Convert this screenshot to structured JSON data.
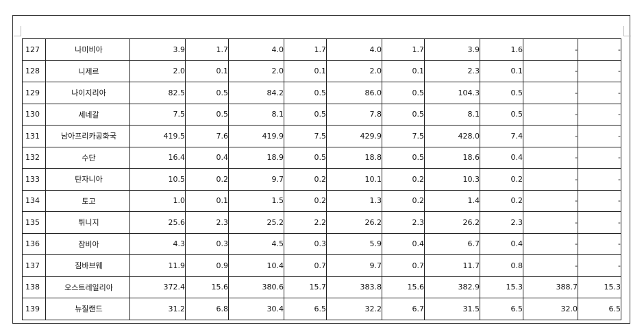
{
  "table": {
    "rows": [
      [
        "127",
        "나미비아",
        "3.9",
        "1.7",
        "4.0",
        "1.7",
        "4.0",
        "1.7",
        "3.9",
        "1.6",
        "-",
        "-"
      ],
      [
        "128",
        "니제르",
        "2.0",
        "0.1",
        "2.0",
        "0.1",
        "2.0",
        "0.1",
        "2.3",
        "0.1",
        "-",
        "-"
      ],
      [
        "129",
        "나이지리아",
        "82.5",
        "0.5",
        "84.2",
        "0.5",
        "86.0",
        "0.5",
        "104.3",
        "0.5",
        "-",
        "-"
      ],
      [
        "130",
        "세네갈",
        "7.5",
        "0.5",
        "8.1",
        "0.5",
        "7.8",
        "0.5",
        "8.1",
        "0.5",
        "-",
        "-"
      ],
      [
        "131",
        "남아프리카공화국",
        "419.5",
        "7.6",
        "419.9",
        "7.5",
        "429.9",
        "7.5",
        "428.0",
        "7.4",
        "-",
        "-"
      ],
      [
        "132",
        "수단",
        "16.4",
        "0.4",
        "18.9",
        "0.5",
        "18.8",
        "0.5",
        "18.6",
        "0.4",
        "-",
        "-"
      ],
      [
        "133",
        "탄자니아",
        "10.5",
        "0.2",
        "9.7",
        "0.2",
        "10.1",
        "0.2",
        "10.3",
        "0.2",
        "-",
        "-"
      ],
      [
        "134",
        "토고",
        "1.0",
        "0.1",
        "1.5",
        "0.2",
        "1.3",
        "0.2",
        "1.4",
        "0.2",
        "-",
        "-"
      ],
      [
        "135",
        "튀니지",
        "25.6",
        "2.3",
        "25.2",
        "2.2",
        "26.2",
        "2.3",
        "26.2",
        "2.3",
        "-",
        "-"
      ],
      [
        "136",
        "잠비아",
        "4.3",
        "0.3",
        "4.5",
        "0.3",
        "5.9",
        "0.4",
        "6.7",
        "0.4",
        "-",
        "-"
      ],
      [
        "137",
        "짐바브웨",
        "11.9",
        "0.9",
        "10.4",
        "0.7",
        "9.7",
        "0.7",
        "11.7",
        "0.8",
        "-",
        "-"
      ],
      [
        "138",
        "오스트레일리아",
        "372.4",
        "15.6",
        "380.6",
        "15.7",
        "383.8",
        "15.6",
        "382.9",
        "15.3",
        "388.7",
        "15.3"
      ],
      [
        "139",
        "뉴질랜드",
        "31.2",
        "6.8",
        "30.4",
        "6.5",
        "32.2",
        "6.7",
        "31.5",
        "6.5",
        "32.0",
        "6.5"
      ]
    ]
  }
}
